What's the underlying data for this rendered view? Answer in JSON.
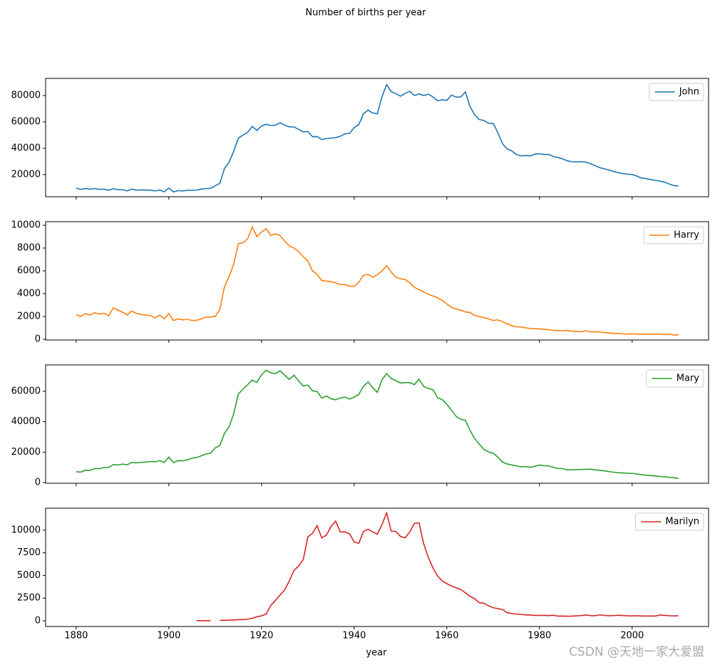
{
  "chart_data": {
    "type": "line",
    "title": "Number of births per year",
    "xlabel": "year",
    "x": [
      1880,
      1881,
      1882,
      1883,
      1884,
      1885,
      1886,
      1887,
      1888,
      1889,
      1890,
      1891,
      1892,
      1893,
      1894,
      1895,
      1896,
      1897,
      1898,
      1899,
      1900,
      1901,
      1902,
      1903,
      1904,
      1905,
      1906,
      1907,
      1908,
      1909,
      1910,
      1911,
      1912,
      1913,
      1914,
      1915,
      1916,
      1917,
      1918,
      1919,
      1920,
      1921,
      1922,
      1923,
      1924,
      1925,
      1926,
      1927,
      1928,
      1929,
      1930,
      1931,
      1932,
      1933,
      1934,
      1935,
      1936,
      1937,
      1938,
      1939,
      1940,
      1941,
      1942,
      1943,
      1944,
      1945,
      1946,
      1947,
      1948,
      1949,
      1950,
      1951,
      1952,
      1953,
      1954,
      1955,
      1956,
      1957,
      1958,
      1959,
      1960,
      1961,
      1962,
      1963,
      1964,
      1965,
      1966,
      1967,
      1968,
      1969,
      1970,
      1971,
      1972,
      1973,
      1974,
      1975,
      1976,
      1977,
      1978,
      1979,
      1980,
      1981,
      1982,
      1983,
      1984,
      1985,
      1986,
      1987,
      1988,
      1989,
      1990,
      1991,
      1992,
      1993,
      1994,
      1995,
      1996,
      1997,
      1998,
      1999,
      2000,
      2001,
      2002,
      2003,
      2004,
      2005,
      2006,
      2007,
      2008,
      2009,
      2010
    ],
    "xlim": [
      1873.4,
      2016.5
    ],
    "xticks": [
      1880,
      1900,
      1920,
      1940,
      1960,
      1980,
      2000
    ],
    "panels": [
      {
        "ylim": [
          3243,
          92970
        ],
        "yticks": [
          20000,
          40000,
          60000,
          80000
        ],
        "legend": "upper right",
        "series": [
          {
            "name": "John",
            "color": "#1f77b4",
            "values": [
              9700,
              8800,
              9500,
              8900,
              9400,
              8800,
              9000,
              8100,
              9300,
              8600,
              8500,
              7700,
              9000,
              8200,
              8400,
              8300,
              8200,
              7600,
              8300,
              7000,
              9800,
              6900,
              7900,
              7600,
              8100,
              8100,
              8200,
              9000,
              9400,
              9600,
              11500,
              13400,
              24600,
              29400,
              37800,
              47600,
              50000,
              52000,
              56600,
              53500,
              56900,
              58200,
              57300,
              57500,
              59300,
              57500,
              56200,
              56200,
              54300,
              52400,
              52700,
              48800,
              48900,
              46600,
              47300,
              47700,
              48000,
              49100,
              51000,
              51300,
              55600,
              58000,
              66000,
              68900,
              66700,
              66200,
              79000,
              88300,
              82900,
              81400,
              79500,
              81600,
              83200,
              80000,
              81200,
              80000,
              81000,
              79000,
              76000,
              76700,
              76300,
              80300,
              78800,
              78900,
              82700,
              71700,
              65400,
              61800,
              61000,
              58900,
              58800,
              52000,
              43600,
              39500,
              38000,
              35300,
              34200,
              34500,
              34200,
              35600,
              35800,
              35300,
              35300,
              33700,
              33000,
              31900,
              30500,
              29800,
              29600,
              29900,
              29500,
              28300,
              26800,
              25300,
              24400,
              23500,
              22400,
              21500,
              20800,
              20300,
              20100,
              18900,
              17400,
              17000,
              16300,
              15600,
              15100,
              14300,
              12900,
              11700,
              11400
            ]
          }
        ]
      },
      {
        "ylim": [
          -62,
          10312
        ],
        "yticks": [
          0,
          2000,
          4000,
          6000,
          8000,
          10000
        ],
        "legend": "upper right",
        "series": [
          {
            "name": "Harry",
            "color": "#ff7f0e",
            "values": [
              2152,
              2002,
              2246,
              2116,
              2338,
              2209,
              2290,
              2057,
              2757,
              2563,
              2365,
              2149,
              2472,
              2265,
              2170,
              2120,
              2080,
              1880,
              2110,
              1800,
              2270,
              1650,
              1790,
              1700,
              1750,
              1650,
              1660,
              1800,
              1950,
              1960,
              2000,
              2600,
              4600,
              5500,
              6600,
              8400,
              8450,
              8800,
              9850,
              9000,
              9400,
              9700,
              9100,
              9250,
              9100,
              8600,
              8200,
              8000,
              7700,
              7250,
              6850,
              6000,
              5700,
              5150,
              5100,
              5050,
              4950,
              4800,
              4800,
              4650,
              4650,
              5000,
              5600,
              5700,
              5450,
              5650,
              6000,
              6450,
              5900,
              5450,
              5300,
              5250,
              4950,
              4550,
              4350,
              4150,
              3950,
              3800,
              3650,
              3400,
              3100,
              2800,
              2650,
              2550,
              2400,
              2350,
              2100,
              2000,
              1900,
              1800,
              1650,
              1700,
              1550,
              1350,
              1200,
              1100,
              1080,
              1000,
              950,
              920,
              920,
              870,
              850,
              780,
              760,
              750,
              780,
              700,
              700,
              650,
              750,
              650,
              650,
              640,
              580,
              560,
              520,
              500,
              470,
              460,
              480,
              450,
              460,
              450,
              450,
              460,
              460,
              410,
              440,
              380,
              380
            ]
          }
        ]
      },
      {
        "ylim": [
          -469,
          77340
        ],
        "yticks": [
          0,
          20000,
          40000,
          60000
        ],
        "legend": "upper right",
        "series": [
          {
            "name": "Mary",
            "color": "#2ca02c",
            "values": [
              7070,
              6900,
              8100,
              8000,
              9200,
              9100,
              9900,
              9900,
              11800,
              11600,
              12100,
              11700,
              13200,
              12900,
              13300,
              13400,
              13800,
              13600,
              14400,
              13200,
              16700,
              13100,
              14400,
              14300,
              14900,
              16000,
              16400,
              17600,
              18700,
              19300,
              22800,
              24400,
              32300,
              36600,
              45300,
              58200,
              61400,
              64300,
              67400,
              65800,
              70900,
              73900,
              72200,
              71600,
              73500,
              70600,
              67800,
              70600,
              66900,
              63500,
              64100,
              60300,
              59900,
              55500,
              56900,
              55100,
              54400,
              55600,
              56200,
              54900,
              56200,
              58000,
              63200,
              66200,
              62400,
              59300,
              67500,
              71700,
              68400,
              66900,
              65500,
              65700,
              65700,
              64400,
              68000,
              63200,
              61800,
              61100,
              55900,
              54500,
              51500,
              47700,
              43500,
              41600,
              40900,
              34300,
              28900,
              25300,
              21800,
              20100,
              19300,
              16700,
              13500,
              12200,
              11600,
              11000,
              10300,
              10500,
              10000,
              10700,
              11500,
              11100,
              10900,
              10000,
              9200,
              9200,
              8300,
              8400,
              8500,
              8600,
              8700,
              8800,
              8400,
              8000,
              7700,
              7200,
              6800,
              6400,
              6300,
              6100,
              6000,
              5600,
              5200,
              4900,
              4600,
              4300,
              4000,
              3700,
              3500,
              3200,
              2800
            ]
          }
        ]
      },
      {
        "ylim": [
          -625,
          12420
        ],
        "yticks": [
          0,
          2500,
          5000,
          7500,
          10000
        ],
        "legend": "upper right",
        "series": [
          {
            "name": "Marilyn",
            "color": "#d62728",
            "values": [
              null,
              null,
              null,
              null,
              null,
              null,
              null,
              null,
              null,
              null,
              null,
              null,
              null,
              null,
              null,
              null,
              null,
              null,
              null,
              null,
              null,
              null,
              null,
              null,
              null,
              null,
              20,
              20,
              20,
              20,
              null,
              50,
              60,
              80,
              100,
              130,
              150,
              180,
              280,
              450,
              550,
              750,
              1700,
              2250,
              2850,
              3400,
              4400,
              5550,
              6050,
              6750,
              9250,
              9650,
              10500,
              9150,
              9450,
              10400,
              11000,
              9800,
              9800,
              9600,
              8700,
              8550,
              9850,
              10100,
              9800,
              9550,
              10600,
              11900,
              9900,
              9850,
              9300,
              9150,
              9800,
              10750,
              10800,
              8500,
              7000,
              5850,
              4950,
              4400,
              4100,
              3850,
              3650,
              3450,
              3100,
              2700,
              2450,
              2000,
              1950,
              1650,
              1450,
              1350,
              1250,
              900,
              800,
              750,
              700,
              650,
              650,
              600,
              600,
              600,
              580,
              620,
              520,
              530,
              510,
              520,
              550,
              580,
              650,
              580,
              560,
              660,
              600,
              570,
              580,
              620,
              590,
              560,
              550,
              560,
              540,
              530,
              540,
              530,
              640,
              610,
              560,
              550,
              560
            ]
          }
        ]
      }
    ]
  },
  "watermark": "CSDN @天地一家大爱盟"
}
